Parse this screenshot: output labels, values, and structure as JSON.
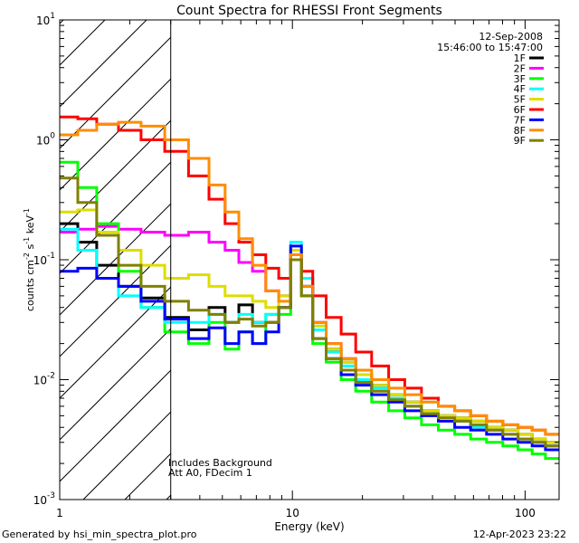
{
  "chart_data": {
    "type": "line",
    "title": "Count Spectra for RHESSI Front Segments",
    "xlabel": "Energy (keV)",
    "ylabel_parts": [
      "counts cm",
      "-2",
      " s",
      "-1",
      " keV",
      "-1"
    ],
    "xscale": "log",
    "yscale": "log",
    "xlim": [
      1,
      140
    ],
    "ylim": [
      0.001,
      10
    ],
    "x_ticks": [
      {
        "value": 1,
        "label": "1"
      },
      {
        "value": 10,
        "label": "10"
      },
      {
        "value": 100,
        "label": "100"
      }
    ],
    "y_ticks": [
      {
        "value": 0.001,
        "base": "10",
        "exp": "-3"
      },
      {
        "value": 0.01,
        "base": "10",
        "exp": "-2"
      },
      {
        "value": 0.1,
        "base": "10",
        "exp": "-1"
      },
      {
        "value": 1,
        "base": "10",
        "exp": "0"
      },
      {
        "value": 10,
        "base": "10",
        "exp": "1"
      }
    ],
    "date": "12-Sep-2008",
    "time_range": "15:46:00 to 15:47:00",
    "annotations": [
      "Includes Background",
      "Att A0, FDecim 1"
    ],
    "shaded_region": [
      1,
      3
    ],
    "series": [
      {
        "name": "1F",
        "color": "#000000",
        "y": [
          0.2,
          0.14,
          0.09,
          0.06,
          0.048,
          0.033,
          0.026,
          0.04,
          0.03,
          0.042,
          0.03,
          0.03,
          0.04,
          0.11,
          0.07,
          0.026,
          0.018,
          0.014,
          0.011,
          0.009,
          0.0075,
          0.0065,
          0.0055,
          0.005,
          0.0048,
          0.0045,
          0.004,
          0.0038,
          0.0035,
          0.0032,
          0.003
        ]
      },
      {
        "name": "2F",
        "color": "#ff00ff",
        "y": [
          0.17,
          0.18,
          0.19,
          0.18,
          0.17,
          0.16,
          0.17,
          0.14,
          0.12,
          0.095,
          0.08,
          0.055,
          0.05,
          0.12,
          0.05,
          0.03,
          0.02,
          0.015,
          0.011,
          0.0085,
          0.007,
          0.006,
          0.0055,
          0.005,
          0.0045,
          0.004,
          0.0038,
          0.0035,
          0.0032,
          0.003,
          0.0028
        ]
      },
      {
        "name": "3F",
        "color": "#00ff00",
        "y": [
          0.65,
          0.4,
          0.2,
          0.08,
          0.04,
          0.025,
          0.02,
          0.03,
          0.018,
          0.025,
          0.02,
          0.035,
          0.035,
          0.12,
          0.05,
          0.02,
          0.014,
          0.01,
          0.008,
          0.0065,
          0.0055,
          0.0048,
          0.0042,
          0.0038,
          0.0035,
          0.0032,
          0.003,
          0.0028,
          0.0026,
          0.0024,
          0.0022
        ]
      },
      {
        "name": "4F",
        "color": "#00ffff",
        "y": [
          0.18,
          0.12,
          0.07,
          0.05,
          0.04,
          0.03,
          0.03,
          0.035,
          0.03,
          0.035,
          0.03,
          0.035,
          0.05,
          0.14,
          0.07,
          0.026,
          0.017,
          0.013,
          0.01,
          0.0085,
          0.007,
          0.006,
          0.0055,
          0.005,
          0.0045,
          0.004,
          0.0038,
          0.0035,
          0.0032,
          0.003,
          0.0028
        ]
      },
      {
        "name": "5F",
        "color": "#dddd00",
        "y": [
          0.25,
          0.26,
          0.17,
          0.12,
          0.09,
          0.07,
          0.075,
          0.06,
          0.05,
          0.05,
          0.045,
          0.04,
          0.05,
          0.12,
          0.06,
          0.028,
          0.018,
          0.014,
          0.011,
          0.009,
          0.0075,
          0.0065,
          0.0055,
          0.005,
          0.0048,
          0.0045,
          0.004,
          0.0038,
          0.0035,
          0.0032,
          0.003
        ]
      },
      {
        "name": "6F",
        "color": "#ff0000",
        "y": [
          1.55,
          1.5,
          1.35,
          1.2,
          1.0,
          0.8,
          0.5,
          0.32,
          0.2,
          0.14,
          0.11,
          0.085,
          0.07,
          0.1,
          0.08,
          0.05,
          0.033,
          0.024,
          0.017,
          0.013,
          0.01,
          0.0085,
          0.007,
          0.006,
          0.0055,
          0.005,
          0.0045,
          0.0042,
          0.004,
          0.0038,
          0.0035
        ]
      },
      {
        "name": "7F",
        "color": "#0000ff",
        "y": [
          0.08,
          0.085,
          0.07,
          0.06,
          0.045,
          0.032,
          0.022,
          0.027,
          0.02,
          0.025,
          0.02,
          0.025,
          0.04,
          0.13,
          0.06,
          0.022,
          0.015,
          0.011,
          0.009,
          0.0075,
          0.0065,
          0.0055,
          0.005,
          0.0045,
          0.004,
          0.0038,
          0.0035,
          0.0032,
          0.003,
          0.0028,
          0.0026
        ]
      },
      {
        "name": "8F",
        "color": "#ff8c00",
        "y": [
          1.1,
          1.2,
          1.35,
          1.4,
          1.3,
          1.0,
          0.7,
          0.42,
          0.25,
          0.15,
          0.09,
          0.055,
          0.045,
          0.11,
          0.06,
          0.03,
          0.02,
          0.015,
          0.012,
          0.01,
          0.0085,
          0.0075,
          0.0065,
          0.006,
          0.0055,
          0.005,
          0.0045,
          0.0042,
          0.004,
          0.0038,
          0.0035
        ]
      },
      {
        "name": "9F",
        "color": "#808000",
        "y": [
          0.48,
          0.3,
          0.16,
          0.09,
          0.06,
          0.045,
          0.038,
          0.035,
          0.03,
          0.032,
          0.028,
          0.03,
          0.04,
          0.1,
          0.05,
          0.022,
          0.015,
          0.012,
          0.0095,
          0.008,
          0.0068,
          0.006,
          0.0052,
          0.0048,
          0.0045,
          0.0042,
          0.0038,
          0.0035,
          0.0032,
          0.003,
          0.0028
        ]
      }
    ],
    "x": [
      1.1,
      1.3,
      1.6,
      2.0,
      2.5,
      3.2,
      4.0,
      4.8,
      5.5,
      6.3,
      7.2,
      8.2,
      9.3,
      10.4,
      11.5,
      13,
      15,
      17.5,
      20,
      24,
      28,
      33,
      39,
      46,
      54,
      63,
      74,
      87,
      100,
      115,
      130
    ]
  },
  "footer": {
    "generated_by": "Generated by hsi_min_spectra_plot.pro",
    "timestamp": "12-Apr-2023 23:22"
  }
}
